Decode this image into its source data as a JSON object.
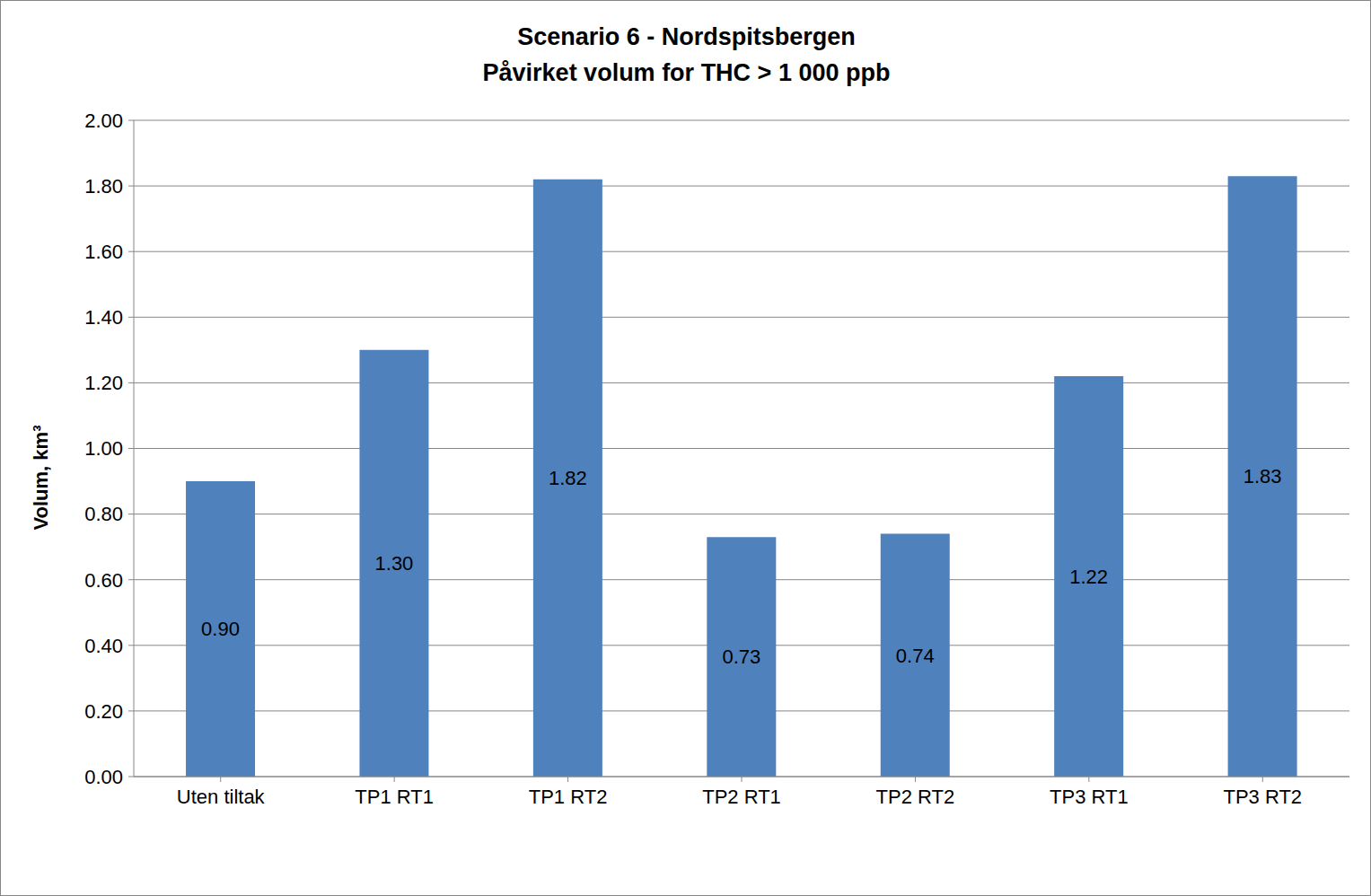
{
  "chart_data": {
    "type": "bar",
    "title": "Scenario 6 - Nordspitsbergen",
    "subtitle": "Påvirket volum for THC > 1 000 ppb",
    "y_label": "Volum, km³",
    "categories": [
      "Uten tiltak",
      "TP1 RT1",
      "TP1 RT2",
      "TP2 RT1",
      "TP2 RT2",
      "TP3 RT1",
      "TP3 RT2"
    ],
    "values": [
      0.9,
      1.3,
      1.82,
      0.73,
      0.74,
      1.22,
      1.83
    ],
    "value_labels": [
      "0.90",
      "1.30",
      "1.82",
      "0.73",
      "0.74",
      "1.22",
      "1.83"
    ],
    "color": "#4f81bd",
    "ylim": [
      0,
      2
    ],
    "yticks": [
      {
        "value": 0,
        "label": "0.00"
      },
      {
        "value": 0.2,
        "label": "0.20"
      },
      {
        "value": 0.4,
        "label": "0.40"
      },
      {
        "value": 0.6,
        "label": "0.60"
      },
      {
        "value": 0.8,
        "label": "0.80"
      },
      {
        "value": 1,
        "label": "1.00"
      },
      {
        "value": 1.2,
        "label": "1.20"
      },
      {
        "value": 1.4,
        "label": "1.40"
      },
      {
        "value": 1.6,
        "label": "1.60"
      },
      {
        "value": 1.8,
        "label": "1.80"
      },
      {
        "value": 2,
        "label": "2.00"
      }
    ],
    "grid": true,
    "data_labels": true
  }
}
